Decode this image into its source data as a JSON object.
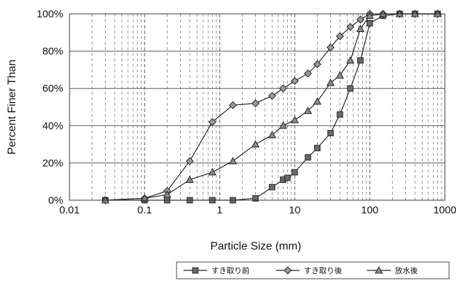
{
  "chart_data": {
    "type": "line",
    "xscale": "log",
    "xlim": [
      0.01,
      1000
    ],
    "ylim": [
      0,
      100
    ],
    "xlabel": "Particle Size (mm)",
    "ylabel": "Percent Finer Than",
    "x_ticks": [
      "0.01",
      "0.1",
      "1",
      "10",
      "100",
      "1000"
    ],
    "y_ticks": [
      "0%",
      "20%",
      "40%",
      "60%",
      "80%",
      "100%"
    ],
    "grid": "dashed",
    "legend_position": "bottom-right",
    "series": [
      {
        "name": "すき取り前",
        "marker": "square",
        "x": [
          0.03,
          0.1,
          0.2,
          0.4,
          0.8,
          1.5,
          3,
          5,
          7,
          8,
          10,
          15,
          20,
          30,
          40,
          55,
          75,
          100,
          150,
          250,
          400,
          800
        ],
        "y": [
          0,
          0,
          0,
          0,
          0,
          0,
          1,
          7,
          11,
          12,
          15,
          23,
          28,
          36,
          46,
          60,
          75,
          95,
          99,
          100,
          100,
          100
        ]
      },
      {
        "name": "すき取り後",
        "marker": "diamond",
        "x": [
          0.03,
          0.1,
          0.2,
          0.4,
          0.8,
          1.5,
          3,
          5,
          7,
          10,
          15,
          20,
          30,
          40,
          55,
          75,
          100,
          150,
          250,
          400,
          800
        ],
        "y": [
          0,
          1,
          5,
          21,
          42,
          51,
          52,
          56,
          60,
          64,
          68,
          73,
          82,
          88,
          93,
          97,
          100,
          100,
          100,
          100,
          100
        ]
      },
      {
        "name": "放水後",
        "marker": "triangle",
        "x": [
          0.03,
          0.1,
          0.2,
          0.4,
          0.8,
          1.5,
          3,
          5,
          7,
          10,
          15,
          20,
          30,
          40,
          55,
          75,
          100,
          150,
          250,
          400,
          800
        ],
        "y": [
          0,
          1,
          3,
          11,
          15,
          21,
          30,
          35,
          40,
          43,
          48,
          53,
          63,
          67,
          75,
          92,
          99,
          100,
          100,
          100,
          100
        ]
      }
    ]
  }
}
